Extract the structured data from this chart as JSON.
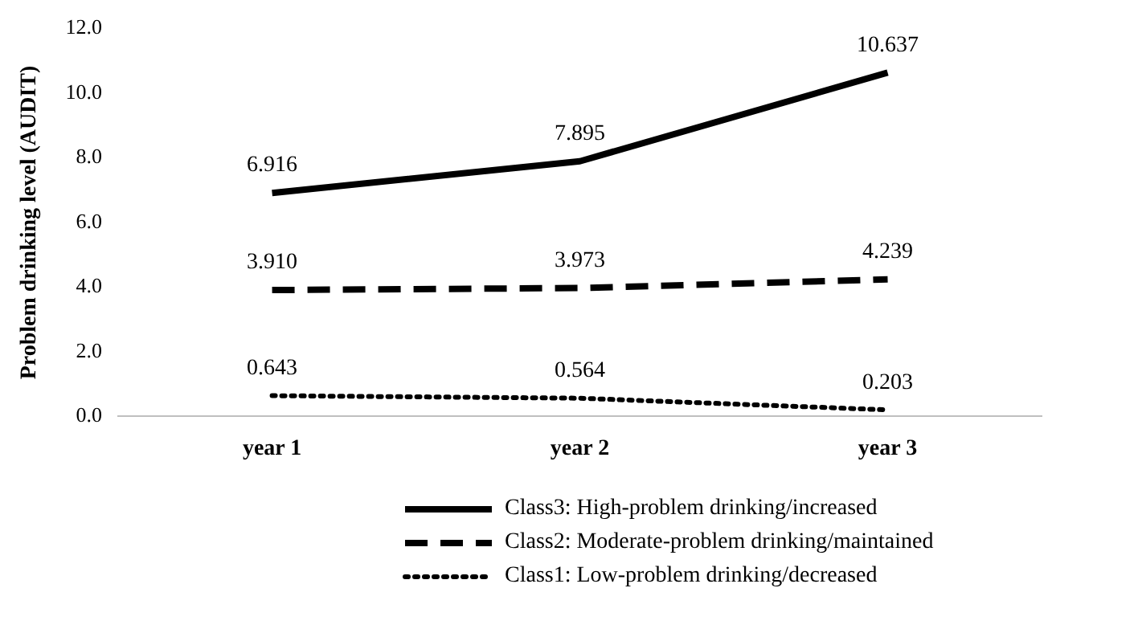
{
  "chart_data": {
    "type": "line",
    "ylabel": "Problem drinking level (AUDIT)",
    "categories": [
      "year 1",
      "year 2",
      "year 3"
    ],
    "series": [
      {
        "name": "Class3: High-problem drinking/increased",
        "color": "#000000",
        "line_style": "solid",
        "values": [
          6.916,
          7.895,
          10.637
        ],
        "value_labels": [
          "6.916",
          "7.895",
          "10.637"
        ]
      },
      {
        "name": "Class2: Moderate-problem drinking/maintained",
        "color": "#000000",
        "line_style": "dashed",
        "values": [
          3.91,
          3.973,
          4.239
        ],
        "value_labels": [
          "3.910",
          "3.973",
          "4.239"
        ]
      },
      {
        "name": "Class1: Low-problem drinking/decreased",
        "color": "#000000",
        "line_style": "dotted",
        "values": [
          0.643,
          0.564,
          0.203
        ],
        "value_labels": [
          "0.643",
          "0.564",
          "0.203"
        ]
      }
    ],
    "ylim": [
      0,
      12
    ],
    "yticks": [
      {
        "value": 0,
        "label": "0.0"
      },
      {
        "value": 2,
        "label": "2.0"
      },
      {
        "value": 4,
        "label": "4.0"
      },
      {
        "value": 6,
        "label": "6.0"
      },
      {
        "value": 8,
        "label": "8.0"
      },
      {
        "value": 10,
        "label": "10.0"
      },
      {
        "value": 12,
        "label": "12.0"
      }
    ],
    "grid": false,
    "legend": "bottom",
    "marker": "none"
  }
}
